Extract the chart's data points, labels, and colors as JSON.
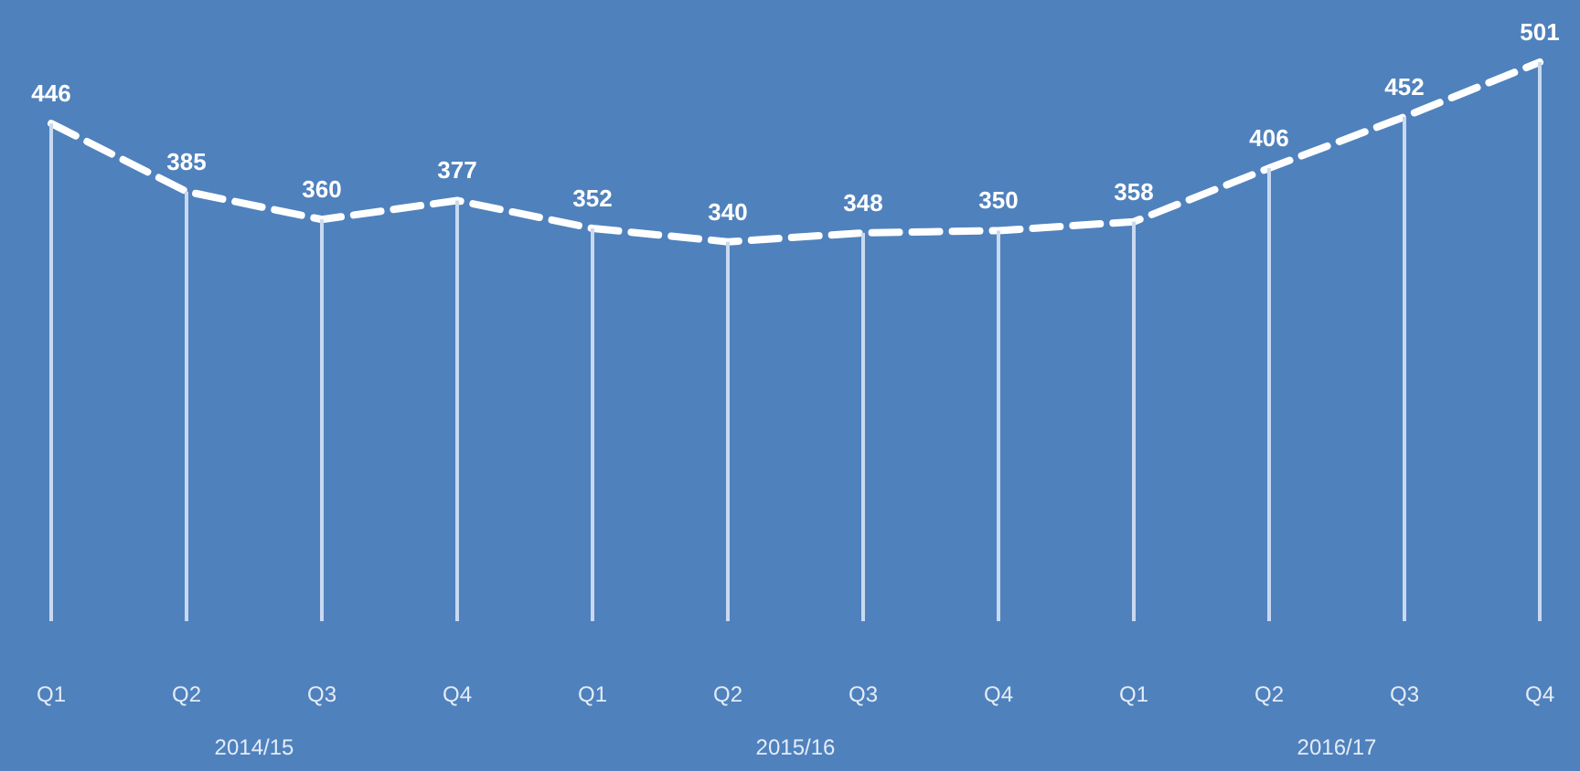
{
  "chart_data": {
    "type": "line",
    "categories": [
      "Q1",
      "Q2",
      "Q3",
      "Q4",
      "Q1",
      "Q2",
      "Q3",
      "Q4",
      "Q1",
      "Q2",
      "Q3",
      "Q4"
    ],
    "series": [
      {
        "type": "bar",
        "color": "#c9d9ef",
        "values": [
          446,
          385,
          360,
          377,
          352,
          340,
          348,
          350,
          358,
          406,
          452,
          501
        ]
      },
      {
        "color": "#ffffff",
        "values": [
          446,
          385,
          360,
          377,
          352,
          340,
          348,
          350,
          358,
          406,
          452,
          501
        ],
        "value_labels": [
          "446",
          "385",
          "360",
          "377",
          "352",
          "340",
          "348",
          "350",
          "358",
          "406",
          "452",
          "501"
        ]
      }
    ],
    "line_style": "dashed",
    "tick_labels": "x",
    "annotations": [
      "2014/15",
      "2015/16",
      "2016/17"
    ]
  }
}
